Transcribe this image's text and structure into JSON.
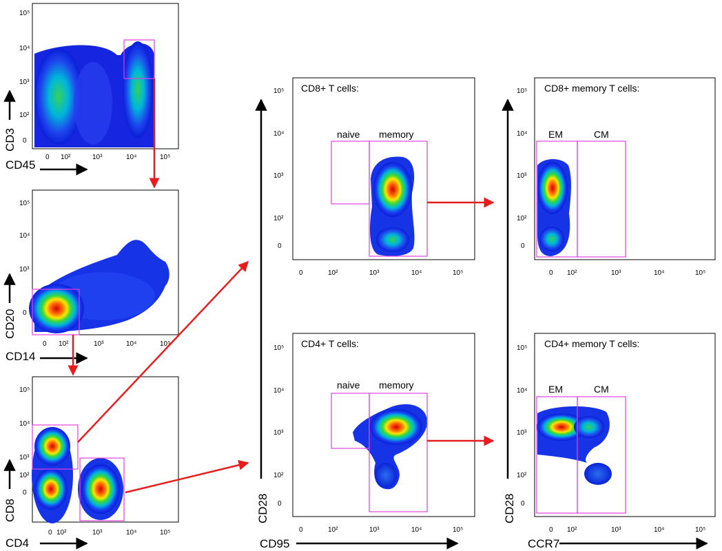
{
  "ticks": {
    "y_main": [
      "10⁵",
      "10⁴",
      "10³",
      "10²",
      "0"
    ],
    "x_main": [
      "0",
      "10²",
      "10³",
      "10⁴",
      "10⁵"
    ],
    "x_right": [
      "0",
      "10²",
      "10³",
      "10⁴",
      "10⁵"
    ]
  },
  "panels": {
    "cd45": {
      "xlabel": "CD45",
      "ylabel": "CD3"
    },
    "cd14": {
      "xlabel": "CD14",
      "ylabel": "CD20"
    },
    "cd4": {
      "xlabel": "CD4",
      "ylabel": "CD8"
    },
    "cd8t": {
      "title": "CD8+ T cells:",
      "gates": [
        "naive",
        "memory"
      ]
    },
    "cd4t": {
      "title": "CD4+ T cells:",
      "gates": [
        "naive",
        "memory"
      ]
    },
    "cd8m": {
      "title": "CD8+ memory T cells:",
      "gates": [
        "EM",
        "CM"
      ]
    },
    "cd4m": {
      "title": "CD4+ memory T cells:",
      "gates": [
        "EM",
        "CM"
      ]
    }
  },
  "axes": {
    "middle": {
      "xlabel": "CD95",
      "ylabel": "CD28"
    },
    "right": {
      "xlabel": "CCR7",
      "ylabel": "CD28"
    }
  },
  "colors": {
    "gate": "#e040e0",
    "arrow": "#e81c1c",
    "frame": "#000000"
  }
}
